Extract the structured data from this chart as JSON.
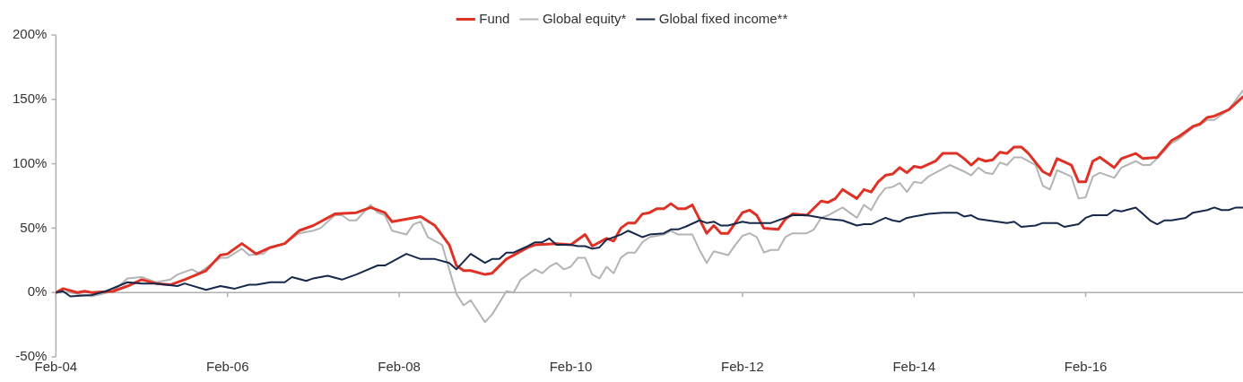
{
  "chart_data": {
    "type": "line",
    "legend": "top",
    "marker": "none",
    "line_style": "solid",
    "xlim": [
      "2004-02",
      "2017-12"
    ],
    "xticks": [
      {
        "value": "2004-02",
        "label": "Feb-04"
      },
      {
        "value": "2006-02",
        "label": "Feb-06"
      },
      {
        "value": "2008-02",
        "label": "Feb-08"
      },
      {
        "value": "2010-02",
        "label": "Feb-10"
      },
      {
        "value": "2012-02",
        "label": "Feb-12"
      },
      {
        "value": "2014-02",
        "label": "Feb-14"
      },
      {
        "value": "2016-02",
        "label": "Feb-16"
      }
    ],
    "ylim": [
      -50,
      200
    ],
    "yticks": [
      {
        "value": -50,
        "label": "-50%"
      },
      {
        "value": 0,
        "label": "0%"
      },
      {
        "value": 50,
        "label": "50%"
      },
      {
        "value": 100,
        "label": "100%"
      },
      {
        "value": 150,
        "label": "150%"
      },
      {
        "value": 200,
        "label": "200%"
      }
    ],
    "series": [
      {
        "name": "Fund",
        "color": "#e03126",
        "x": [
          "2004-02",
          "2004-03",
          "2004-05",
          "2004-06",
          "2004-07",
          "2004-10",
          "2004-12",
          "2005-02",
          "2005-04",
          "2005-06",
          "2005-08",
          "2005-11",
          "2006-01",
          "2006-02",
          "2006-04",
          "2006-06",
          "2006-08",
          "2006-10",
          "2006-12",
          "2007-02",
          "2007-05",
          "2007-08",
          "2007-10",
          "2007-12",
          "2008-01",
          "2008-05",
          "2008-07",
          "2008-09",
          "2008-10",
          "2008-11",
          "2008-12",
          "2009-02",
          "2009-03",
          "2009-05",
          "2009-06",
          "2009-08",
          "2009-09",
          "2009-12",
          "2010-02",
          "2010-04",
          "2010-05",
          "2010-07",
          "2010-08",
          "2010-09",
          "2010-10",
          "2010-11",
          "2010-12",
          "2011-01",
          "2011-02",
          "2011-03",
          "2011-04",
          "2011-05",
          "2011-06",
          "2011-07",
          "2011-08",
          "2011-09",
          "2011-10",
          "2011-11",
          "2011-12",
          "2012-02",
          "2012-03",
          "2012-04",
          "2012-05",
          "2012-07",
          "2012-08",
          "2012-09",
          "2012-11",
          "2013-01",
          "2013-02",
          "2013-03",
          "2013-04",
          "2013-06",
          "2013-07",
          "2013-08",
          "2013-09",
          "2013-10",
          "2013-11",
          "2013-12",
          "2014-01",
          "2014-02",
          "2014-03",
          "2014-05",
          "2014-06",
          "2014-08",
          "2014-09",
          "2014-10",
          "2014-11",
          "2014-12",
          "2015-01",
          "2015-02",
          "2015-03",
          "2015-04",
          "2015-05",
          "2015-06",
          "2015-08",
          "2015-09",
          "2015-10",
          "2015-12",
          "2016-01",
          "2016-02",
          "2016-03",
          "2016-04",
          "2016-06",
          "2016-07",
          "2016-09",
          "2016-10",
          "2016-12",
          "2017-02",
          "2017-03",
          "2017-05",
          "2017-06",
          "2017-07",
          "2017-08",
          "2017-10",
          "2017-12"
        ],
        "values": [
          0,
          3,
          0,
          1,
          0,
          1,
          5,
          10,
          7,
          6,
          10,
          17,
          29,
          30,
          38,
          30,
          35,
          38,
          48,
          52,
          61,
          62,
          66,
          62,
          55,
          59,
          52,
          37,
          21,
          17,
          17,
          14,
          15,
          26,
          29,
          35,
          37,
          38,
          37,
          45,
          36,
          42,
          40,
          50,
          54,
          54,
          61,
          62,
          65,
          65,
          69,
          65,
          65,
          68,
          57,
          46,
          52,
          46,
          46,
          62,
          64,
          60,
          50,
          49,
          57,
          61,
          60,
          71,
          70,
          73,
          80,
          73,
          80,
          78,
          86,
          91,
          92,
          97,
          93,
          98,
          97,
          102,
          108,
          108,
          104,
          99,
          104,
          102,
          103,
          109,
          108,
          113,
          113,
          108,
          94,
          91,
          104,
          99,
          86,
          86,
          102,
          105,
          97,
          104,
          108,
          104,
          105,
          118,
          121,
          129,
          131,
          136,
          137,
          142,
          152
        ]
      },
      {
        "name": "Global equity*",
        "color": "#b4b4b4",
        "x": [
          "2004-02",
          "2004-04",
          "2004-07",
          "2004-10",
          "2004-12",
          "2005-02",
          "2005-04",
          "2005-06",
          "2005-07",
          "2005-09",
          "2005-10",
          "2006-01",
          "2006-02",
          "2006-04",
          "2006-05",
          "2006-07",
          "2006-08",
          "2006-10",
          "2006-12",
          "2007-02",
          "2007-03",
          "2007-05",
          "2007-06",
          "2007-07",
          "2007-08",
          "2007-10",
          "2007-11",
          "2007-12",
          "2008-01",
          "2008-03",
          "2008-04",
          "2008-05",
          "2008-06",
          "2008-08",
          "2008-09",
          "2008-10",
          "2008-11",
          "2008-12",
          "2009-02",
          "2009-03",
          "2009-05",
          "2009-06",
          "2009-07",
          "2009-09",
          "2009-10",
          "2009-11",
          "2009-12",
          "2010-01",
          "2010-02",
          "2010-03",
          "2010-04",
          "2010-05",
          "2010-06",
          "2010-07",
          "2010-08",
          "2010-09",
          "2010-10",
          "2010-11",
          "2010-12",
          "2011-01",
          "2011-03",
          "2011-04",
          "2011-05",
          "2011-07",
          "2011-08",
          "2011-09",
          "2011-10",
          "2011-12",
          "2012-01",
          "2012-02",
          "2012-03",
          "2012-04",
          "2012-05",
          "2012-06",
          "2012-07",
          "2012-08",
          "2012-09",
          "2012-11",
          "2012-12",
          "2013-01",
          "2013-02",
          "2013-04",
          "2013-06",
          "2013-07",
          "2013-08",
          "2013-09",
          "2013-10",
          "2013-11",
          "2013-12",
          "2014-01",
          "2014-02",
          "2014-03",
          "2014-04",
          "2014-06",
          "2014-07",
          "2014-09",
          "2014-10",
          "2014-11",
          "2014-12",
          "2015-01",
          "2015-02",
          "2015-03",
          "2015-04",
          "2015-05",
          "2015-07",
          "2015-08",
          "2015-09",
          "2015-10",
          "2015-12",
          "2016-01",
          "2016-02",
          "2016-03",
          "2016-04",
          "2016-06",
          "2016-07",
          "2016-09",
          "2016-10",
          "2016-11",
          "2016-12",
          "2017-02",
          "2017-03",
          "2017-05",
          "2017-06",
          "2017-07",
          "2017-08",
          "2017-10",
          "2017-12"
        ],
        "values": [
          0,
          0,
          -3,
          1,
          11,
          12,
          8,
          10,
          14,
          18,
          15,
          27,
          27,
          34,
          29,
          30,
          35,
          38,
          46,
          48,
          50,
          60,
          60,
          56,
          56,
          68,
          62,
          60,
          48,
          45,
          53,
          55,
          43,
          37,
          18,
          -1,
          -10,
          -6,
          -23,
          -17,
          1,
          0,
          10,
          18,
          15,
          20,
          23,
          18,
          20,
          27,
          27,
          14,
          11,
          20,
          15,
          27,
          31,
          31,
          39,
          43,
          45,
          48,
          45,
          45,
          33,
          23,
          32,
          29,
          37,
          44,
          46,
          43,
          31,
          33,
          33,
          43,
          46,
          46,
          49,
          58,
          60,
          66,
          58,
          68,
          64,
          74,
          81,
          82,
          85,
          78,
          86,
          85,
          90,
          96,
          99,
          94,
          91,
          97,
          93,
          92,
          101,
          99,
          105,
          105,
          99,
          83,
          80,
          95,
          90,
          73,
          74,
          90,
          93,
          89,
          97,
          102,
          99,
          99,
          104,
          116,
          119,
          128,
          130,
          134,
          134,
          142,
          157
        ]
      },
      {
        "name": "Global fixed income**",
        "color": "#17294a",
        "x": [
          "2004-02",
          "2004-03",
          "2004-04",
          "2004-07",
          "2004-09",
          "2004-12",
          "2005-02",
          "2005-04",
          "2005-07",
          "2005-08",
          "2005-11",
          "2006-01",
          "2006-03",
          "2006-05",
          "2006-06",
          "2006-08",
          "2006-10",
          "2006-11",
          "2007-01",
          "2007-02",
          "2007-04",
          "2007-06",
          "2007-08",
          "2007-11",
          "2007-12",
          "2008-03",
          "2008-05",
          "2008-07",
          "2008-09",
          "2008-10",
          "2008-12",
          "2009-02",
          "2009-03",
          "2009-04",
          "2009-05",
          "2009-06",
          "2009-08",
          "2009-09",
          "2009-10",
          "2009-11",
          "2009-12",
          "2010-02",
          "2010-03",
          "2010-04",
          "2010-05",
          "2010-06",
          "2010-07",
          "2010-09",
          "2010-10",
          "2010-12",
          "2011-01",
          "2011-03",
          "2011-04",
          "2011-05",
          "2011-06",
          "2011-08",
          "2011-09",
          "2011-10",
          "2011-11",
          "2011-12",
          "2012-02",
          "2012-03",
          "2012-06",
          "2012-09",
          "2012-11",
          "2013-02",
          "2013-04",
          "2013-06",
          "2013-07",
          "2013-08",
          "2013-10",
          "2013-11",
          "2013-12",
          "2014-01",
          "2014-03",
          "2014-04",
          "2014-06",
          "2014-08",
          "2014-09",
          "2014-10",
          "2014-11",
          "2015-03",
          "2015-04",
          "2015-05",
          "2015-07",
          "2015-08",
          "2015-10",
          "2015-11",
          "2016-01",
          "2016-02",
          "2016-03",
          "2016-05",
          "2016-06",
          "2016-07",
          "2016-09",
          "2016-10",
          "2016-11",
          "2016-12",
          "2017-01",
          "2017-02",
          "2017-04",
          "2017-05",
          "2017-07",
          "2017-08",
          "2017-09",
          "2017-10",
          "2017-11",
          "2017-12"
        ],
        "values": [
          0,
          1,
          -3,
          -2,
          1,
          8,
          7,
          7,
          5,
          7,
          2,
          5,
          3,
          6,
          6,
          8,
          8,
          12,
          9,
          11,
          13,
          10,
          14,
          21,
          21,
          30,
          26,
          26,
          23,
          18,
          30,
          23,
          26,
          26,
          31,
          31,
          36,
          39,
          39,
          42,
          37,
          37,
          36,
          36,
          34,
          35,
          41,
          45,
          48,
          43,
          45,
          46,
          49,
          49,
          51,
          56,
          54,
          55,
          52,
          52,
          55,
          54,
          54,
          60,
          60,
          57,
          56,
          52,
          53,
          53,
          58,
          56,
          55,
          58,
          60,
          61,
          62,
          62,
          59,
          60,
          57,
          54,
          55,
          51,
          52,
          54,
          54,
          51,
          53,
          58,
          60,
          60,
          64,
          63,
          66,
          61,
          56,
          53,
          56,
          56,
          58,
          62,
          64,
          66,
          64,
          64,
          66,
          66
        ]
      }
    ]
  }
}
